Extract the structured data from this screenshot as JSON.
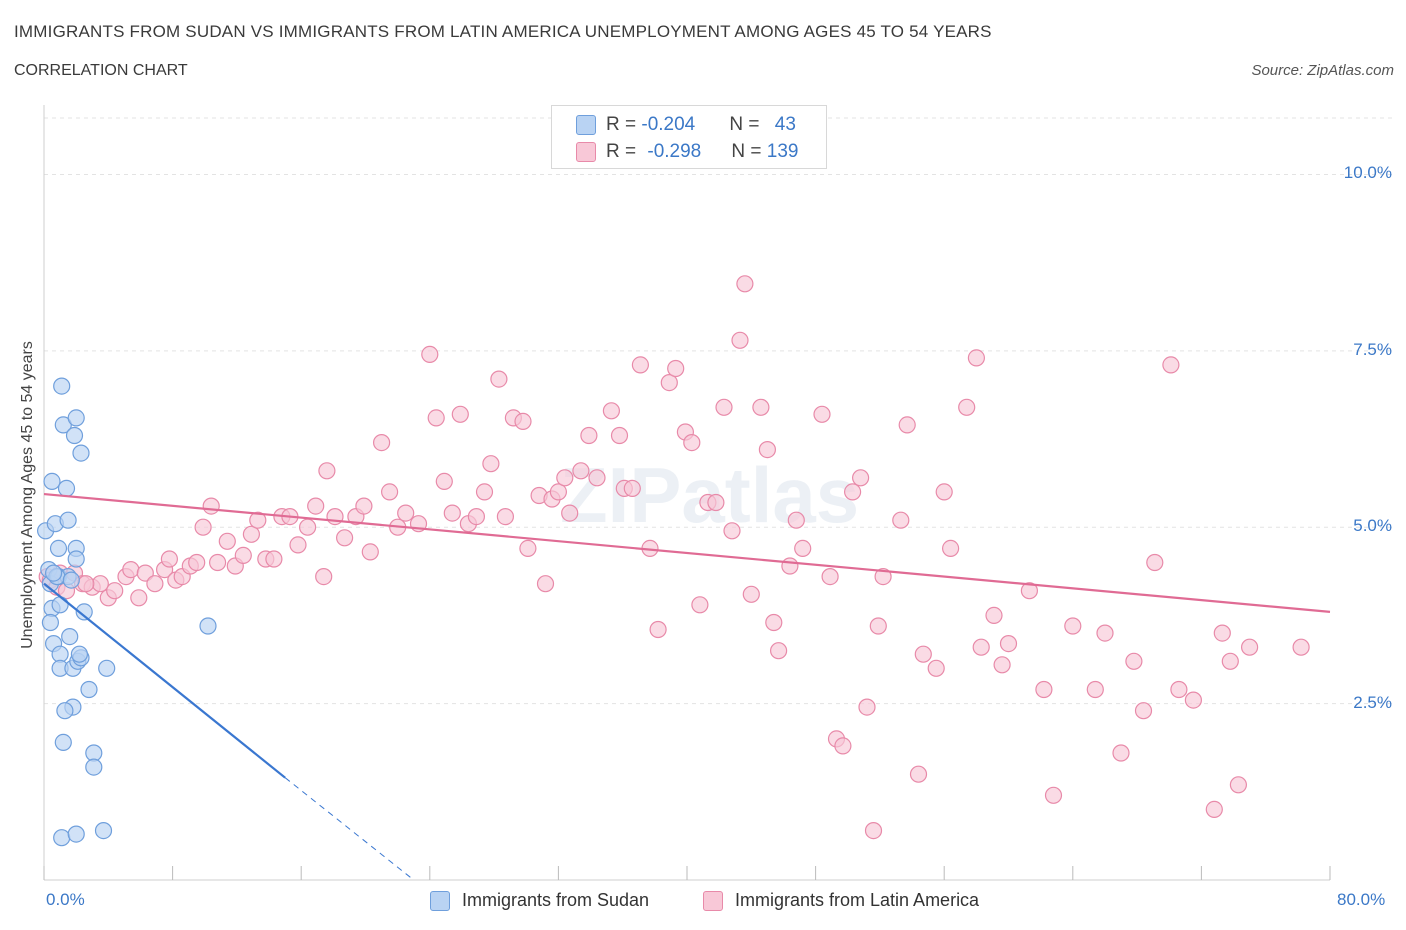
{
  "title": "IMMIGRANTS FROM SUDAN VS IMMIGRANTS FROM LATIN AMERICA UNEMPLOYMENT AMONG AGES 45 TO 54 YEARS",
  "subtitle": "CORRELATION CHART",
  "source": "Source: ZipAtlas.com",
  "watermark": "ZIPatlas",
  "legend_top": [
    {
      "r_label": "R = ",
      "r_value": "-0.204",
      "n_label": "N = ",
      "n_value": "43"
    },
    {
      "r_label": "R = ",
      "r_value": "-0.298",
      "n_label": "N = ",
      "n_value": "139"
    }
  ],
  "legend_bottom": [
    {
      "label": "Immigrants from Sudan"
    },
    {
      "label": "Immigrants from Latin America"
    }
  ],
  "colors": {
    "sudan_fill": "#b9d3f3",
    "sudan_stroke": "#6f9fdc",
    "sudan_line": "#3a77d0",
    "latam_fill": "#f8c8d7",
    "latam_stroke": "#e88aa9",
    "latam_line": "#e06b94",
    "grid": "#e3e3e3",
    "tick_label": "#3b78c7"
  },
  "chart_data": {
    "type": "scatter",
    "title": "IMMIGRANTS FROM SUDAN VS IMMIGRANTS FROM LATIN AMERICA UNEMPLOYMENT AMONG AGES 45 TO 54 YEARS",
    "subtitle": "CORRELATION CHART",
    "xlabel": "",
    "ylabel": "Unemployment Among Ages 45 to 54 years",
    "xlim": [
      0,
      80
    ],
    "ylim": [
      0,
      10.8
    ],
    "x_tick_labels": [
      "0.0%",
      "80.0%"
    ],
    "y_ticks": [
      2.5,
      5.0,
      7.5,
      10.0
    ],
    "y_tick_labels": [
      "2.5%",
      "5.0%",
      "7.5%",
      "10.0%"
    ],
    "grid": true,
    "legend_position": "top-center",
    "series": [
      {
        "name": "Immigrants from Sudan",
        "R": -0.204,
        "N": 43,
        "trend": {
          "x": [
            0.0,
            15.0
          ],
          "y": [
            4.2,
            1.45
          ],
          "dashed_to": [
            23.0,
            0.0
          ]
        },
        "points": [
          [
            0.1,
            4.95
          ],
          [
            0.3,
            4.4
          ],
          [
            0.4,
            4.2
          ],
          [
            0.5,
            3.85
          ],
          [
            0.4,
            3.65
          ],
          [
            0.6,
            3.35
          ],
          [
            0.5,
            5.65
          ],
          [
            0.7,
            5.05
          ],
          [
            0.9,
            4.7
          ],
          [
            0.9,
            4.3
          ],
          [
            1.0,
            3.9
          ],
          [
            1.0,
            3.2
          ],
          [
            1.0,
            3.0
          ],
          [
            1.1,
            7.0
          ],
          [
            1.2,
            6.45
          ],
          [
            1.4,
            5.55
          ],
          [
            1.5,
            5.1
          ],
          [
            1.5,
            4.3
          ],
          [
            1.6,
            3.45
          ],
          [
            1.8,
            3.0
          ],
          [
            1.8,
            2.45
          ],
          [
            1.9,
            6.3
          ],
          [
            2.0,
            6.55
          ],
          [
            2.0,
            4.7
          ],
          [
            2.0,
            4.55
          ],
          [
            2.1,
            3.1
          ],
          [
            2.3,
            3.15
          ],
          [
            2.3,
            6.05
          ],
          [
            2.5,
            3.8
          ],
          [
            2.8,
            2.7
          ],
          [
            3.1,
            1.8
          ],
          [
            3.1,
            1.6
          ],
          [
            1.2,
            1.95
          ],
          [
            1.1,
            0.6
          ],
          [
            2.0,
            0.65
          ],
          [
            3.7,
            0.7
          ],
          [
            3.9,
            3.0
          ],
          [
            10.2,
            3.6
          ],
          [
            0.8,
            4.3
          ],
          [
            1.3,
            2.4
          ],
          [
            0.6,
            4.35
          ],
          [
            1.7,
            4.25
          ],
          [
            2.2,
            3.2
          ]
        ]
      },
      {
        "name": "Immigrants from Latin America",
        "R": -0.298,
        "N": 139,
        "trend": {
          "x": [
            0.0,
            80.0
          ],
          "y": [
            5.47,
            3.8
          ]
        },
        "points": [
          [
            0.2,
            4.3
          ],
          [
            0.4,
            4.25
          ],
          [
            0.8,
            4.15
          ],
          [
            1.0,
            4.35
          ],
          [
            1.4,
            4.1
          ],
          [
            1.9,
            4.35
          ],
          [
            2.4,
            4.2
          ],
          [
            3.0,
            4.15
          ],
          [
            3.5,
            4.2
          ],
          [
            4.0,
            4.0
          ],
          [
            4.4,
            4.1
          ],
          [
            5.1,
            4.3
          ],
          [
            5.4,
            4.4
          ],
          [
            5.9,
            4.0
          ],
          [
            6.3,
            4.35
          ],
          [
            6.9,
            4.2
          ],
          [
            7.5,
            4.4
          ],
          [
            7.8,
            4.55
          ],
          [
            8.2,
            4.25
          ],
          [
            8.6,
            4.3
          ],
          [
            9.1,
            4.45
          ],
          [
            9.5,
            4.5
          ],
          [
            9.9,
            5.0
          ],
          [
            10.4,
            5.3
          ],
          [
            10.8,
            4.5
          ],
          [
            11.4,
            4.8
          ],
          [
            11.9,
            4.45
          ],
          [
            12.4,
            4.6
          ],
          [
            12.9,
            4.9
          ],
          [
            13.3,
            5.1
          ],
          [
            13.8,
            4.55
          ],
          [
            14.3,
            4.55
          ],
          [
            14.8,
            5.15
          ],
          [
            15.3,
            5.15
          ],
          [
            15.8,
            4.75
          ],
          [
            16.4,
            5.0
          ],
          [
            16.9,
            5.3
          ],
          [
            17.4,
            4.3
          ],
          [
            17.6,
            5.8
          ],
          [
            18.1,
            5.15
          ],
          [
            18.7,
            4.85
          ],
          [
            19.4,
            5.15
          ],
          [
            19.9,
            5.3
          ],
          [
            20.3,
            4.65
          ],
          [
            21.0,
            6.2
          ],
          [
            21.5,
            5.5
          ],
          [
            22.0,
            5.0
          ],
          [
            22.5,
            5.2
          ],
          [
            23.3,
            5.05
          ],
          [
            24.0,
            7.45
          ],
          [
            24.4,
            6.55
          ],
          [
            24.9,
            5.65
          ],
          [
            25.4,
            5.2
          ],
          [
            25.9,
            6.6
          ],
          [
            26.4,
            5.05
          ],
          [
            26.9,
            5.15
          ],
          [
            27.4,
            5.5
          ],
          [
            27.8,
            5.9
          ],
          [
            28.3,
            7.1
          ],
          [
            28.7,
            5.15
          ],
          [
            29.2,
            6.55
          ],
          [
            29.8,
            6.5
          ],
          [
            30.1,
            4.7
          ],
          [
            30.8,
            5.45
          ],
          [
            31.2,
            4.2
          ],
          [
            31.6,
            5.4
          ],
          [
            32.0,
            5.5
          ],
          [
            32.4,
            5.7
          ],
          [
            32.7,
            5.2
          ],
          [
            33.4,
            5.8
          ],
          [
            33.9,
            6.3
          ],
          [
            34.4,
            5.7
          ],
          [
            35.3,
            6.65
          ],
          [
            35.8,
            6.3
          ],
          [
            36.1,
            5.55
          ],
          [
            36.6,
            5.55
          ],
          [
            37.1,
            7.3
          ],
          [
            37.7,
            4.7
          ],
          [
            38.2,
            3.55
          ],
          [
            38.9,
            7.05
          ],
          [
            39.3,
            7.25
          ],
          [
            39.9,
            6.35
          ],
          [
            40.3,
            6.2
          ],
          [
            40.8,
            3.9
          ],
          [
            41.3,
            5.35
          ],
          [
            41.8,
            5.35
          ],
          [
            42.3,
            6.7
          ],
          [
            42.8,
            4.95
          ],
          [
            43.3,
            7.65
          ],
          [
            43.6,
            8.45
          ],
          [
            44.0,
            4.05
          ],
          [
            44.6,
            6.7
          ],
          [
            45.0,
            6.1
          ],
          [
            45.4,
            3.65
          ],
          [
            45.7,
            3.25
          ],
          [
            46.4,
            4.45
          ],
          [
            46.8,
            5.1
          ],
          [
            47.2,
            4.7
          ],
          [
            48.4,
            6.6
          ],
          [
            48.9,
            4.3
          ],
          [
            49.3,
            2.0
          ],
          [
            49.7,
            1.9
          ],
          [
            50.3,
            5.5
          ],
          [
            50.8,
            5.7
          ],
          [
            51.2,
            2.45
          ],
          [
            51.6,
            0.7
          ],
          [
            51.9,
            3.6
          ],
          [
            52.2,
            4.3
          ],
          [
            53.3,
            5.1
          ],
          [
            53.7,
            6.45
          ],
          [
            54.4,
            1.5
          ],
          [
            54.7,
            3.2
          ],
          [
            55.5,
            3.0
          ],
          [
            56.0,
            5.5
          ],
          [
            56.4,
            4.7
          ],
          [
            57.4,
            6.7
          ],
          [
            58.0,
            7.4
          ],
          [
            58.3,
            3.3
          ],
          [
            59.1,
            3.75
          ],
          [
            59.6,
            3.05
          ],
          [
            60.0,
            3.35
          ],
          [
            61.3,
            4.1
          ],
          [
            62.2,
            2.7
          ],
          [
            62.8,
            1.2
          ],
          [
            64.0,
            3.6
          ],
          [
            65.4,
            2.7
          ],
          [
            66.0,
            3.5
          ],
          [
            67.0,
            1.8
          ],
          [
            67.8,
            3.1
          ],
          [
            68.4,
            2.4
          ],
          [
            69.1,
            4.5
          ],
          [
            70.1,
            7.3
          ],
          [
            70.6,
            2.7
          ],
          [
            71.5,
            2.55
          ],
          [
            72.8,
            1.0
          ],
          [
            73.3,
            3.5
          ],
          [
            73.8,
            3.1
          ],
          [
            74.3,
            1.35
          ],
          [
            75.0,
            3.3
          ],
          [
            78.2,
            3.3
          ],
          [
            2.6,
            4.2
          ]
        ]
      }
    ]
  }
}
